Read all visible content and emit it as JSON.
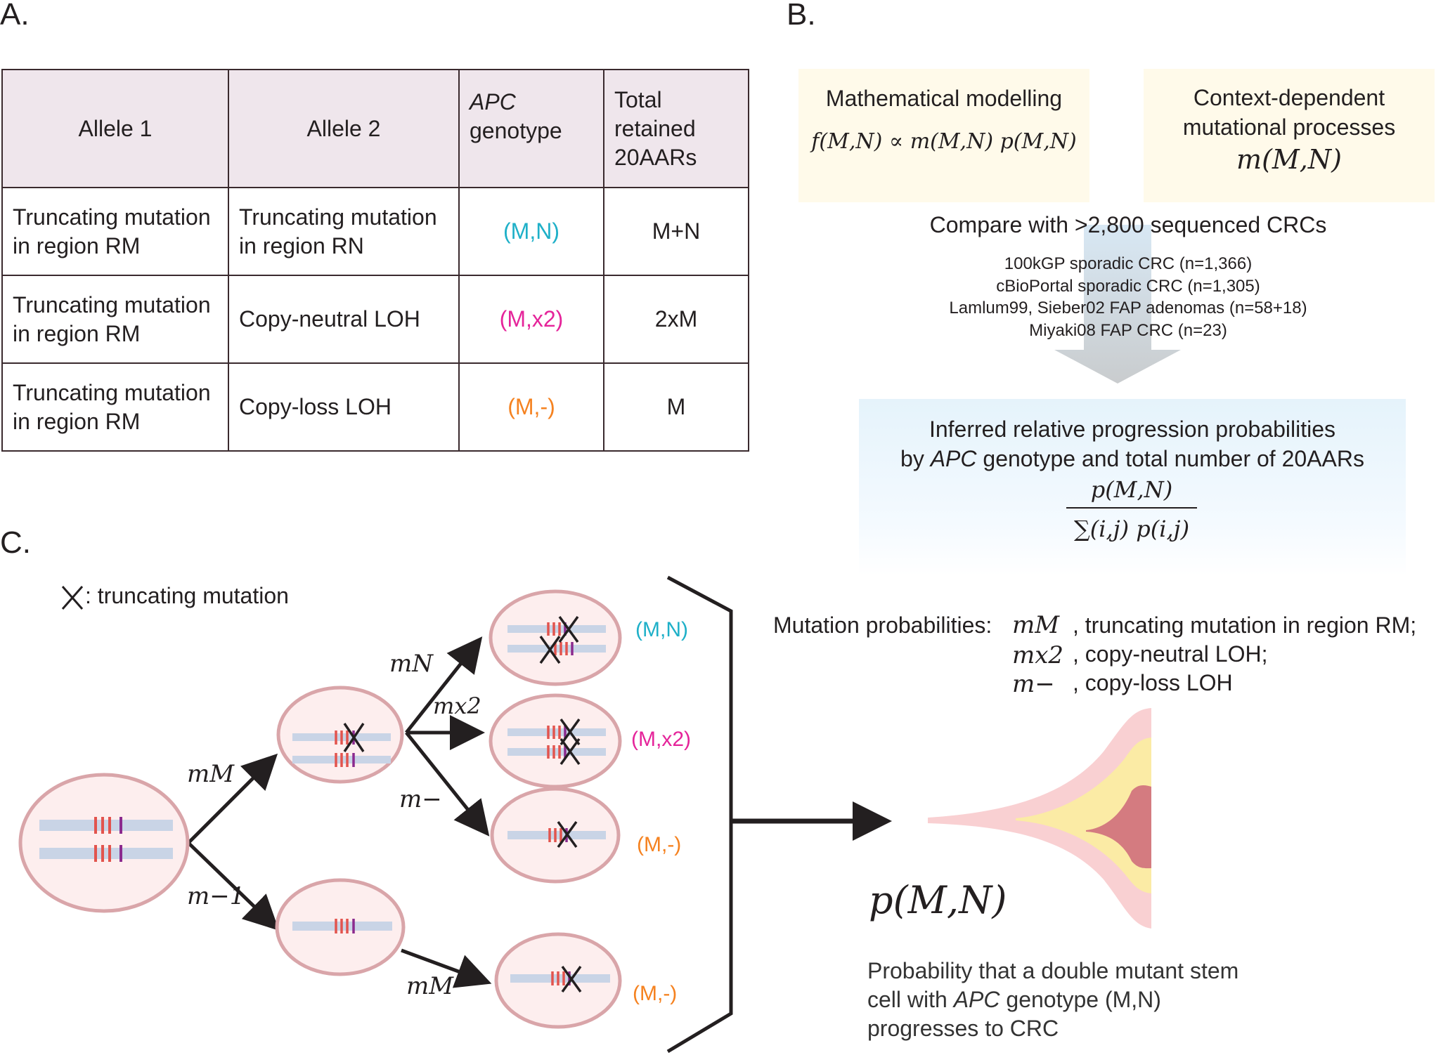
{
  "panel_labels": {
    "a": "A.",
    "b": "B.",
    "c": "C."
  },
  "table": {
    "headers": {
      "allele1": "Allele 1",
      "allele2": "Allele 2",
      "genotype_italic": "APC",
      "genotype_rest": "genotype",
      "total_line1": "Total",
      "total_line2": "retained",
      "total_line3": "20AARs"
    },
    "rows": [
      {
        "allele1_l1": "Truncating mutation",
        "allele1_l2": "in region RM",
        "allele2_l1": "Truncating mutation",
        "allele2_l2": "in region RN",
        "genotype": "(M,N)",
        "total": "M+N"
      },
      {
        "allele1_l1": "Truncating mutation",
        "allele1_l2": "in region RM",
        "allele2_l1": "Copy-neutral LOH",
        "allele2_l2": "",
        "genotype": "(M,x2)",
        "total": "2xM"
      },
      {
        "allele1_l1": "Truncating mutation",
        "allele1_l2": "in region RM",
        "allele2_l1": "Copy-loss LOH",
        "allele2_l2": "",
        "genotype": "(M,-)",
        "total": "M"
      }
    ]
  },
  "panel_b": {
    "box1_title": "Mathematical modelling",
    "box1_formula": "f(M,N) ∝ m(M,N) p(M,N)",
    "box2_line1": "Context-dependent",
    "box2_line2": "mutational processes",
    "box2_formula": "m(M,N)",
    "compare_text": "Compare with >2,800 sequenced CRCs",
    "datasets": [
      "100kGP sporadic CRC (n=1,366)",
      "cBioPortal sporadic CRC (n=1,305)",
      "Lamlum99, Sieber02 FAP adenomas (n=58+18)",
      "Miyaki08 FAP CRC (n=23)"
    ],
    "inferred_line1": "Inferred relative progression probabilities",
    "inferred_line2_pre": "by ",
    "inferred_line2_italic": "APC",
    "inferred_line2_post": " genotype and total number of 20AARs",
    "fraction_num": "p(M,N)",
    "fraction_den": "∑(i,j) p(i,j)"
  },
  "panel_c": {
    "legend_text": ": truncating mutation",
    "edge_labels": {
      "mM_top": "mM",
      "m_minus1": "m−1",
      "mN": "mN",
      "mx2": "mx2",
      "m_minus": "m−",
      "mM_bottom": "mM"
    },
    "outcomes": [
      "(M,N)",
      "(M,x2)",
      "(M,-)",
      "(M,-)"
    ],
    "mutation_probs_label": "Mutation probabilities:",
    "mutation_probs": [
      {
        "sym": "mM",
        "desc": ", truncating mutation in region RM;"
      },
      {
        "sym": "mx2",
        "desc": ", copy-neutral LOH;"
      },
      {
        "sym": "m−",
        "desc": ", copy-loss LOH"
      }
    ],
    "p_symbol": "p(M,N)",
    "prob_line1": "Probability that a double mutant stem",
    "prob_line2_pre": "cell with ",
    "prob_line2_italic": "APC",
    "prob_line2_post": " genotype (M,N)",
    "prob_line3": "progresses to CRC"
  },
  "colors": {
    "mn": "#1fb0c8",
    "mx2": "#e5249a",
    "mminus": "#f58220",
    "cell_fill": "#fdeeee",
    "cell_stroke": "#d9a5a9",
    "chromosome": "#c9d4e6",
    "stripe_red": "#e2544e",
    "stripe_purple": "#8b2a8e",
    "arrow": "#231f20",
    "tissue_pink": "#f9d0d2",
    "tissue_yellow": "#fbeba5",
    "tissue_tumor": "#d47b80",
    "header_bg": "#efe6ec"
  }
}
